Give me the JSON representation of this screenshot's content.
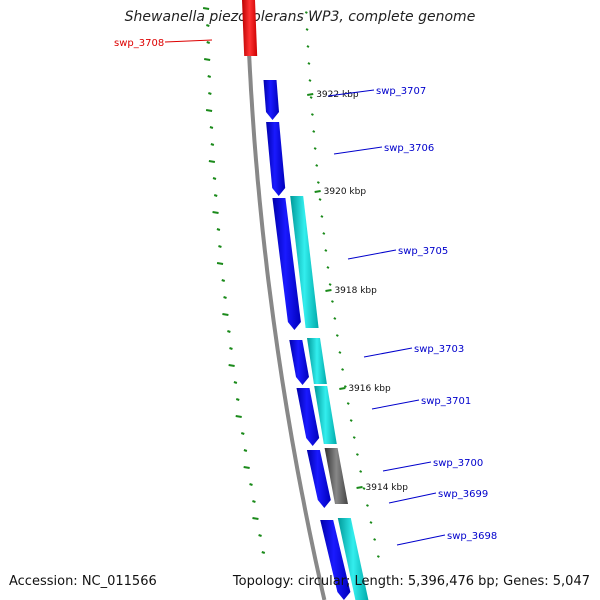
{
  "title": "Shewanella piezotolerans WP3, complete genome",
  "footer": {
    "accession": "Accession: NC_011566",
    "summary": "Topology: circular; Length: 5,396,476 bp; Genes: 5,047"
  },
  "colors": {
    "forward_gene": "#0000ee",
    "reverse_gene": "#00cccc",
    "highlight_gene": "#ee0000",
    "other_gene": "#555555",
    "backbone": "#888888",
    "gc_ticks": "#1a8a1a",
    "label_blue": "#0000cc",
    "label_red": "#dd0000"
  },
  "kbp_ticks": [
    "3922 kbp",
    "3920 kbp",
    "3918 kbp",
    "3916 kbp",
    "3914 kbp"
  ],
  "gene_labels": [
    {
      "label": "swp_3708",
      "color": "red"
    },
    {
      "label": "swp_3707",
      "color": "blue"
    },
    {
      "label": "swp_3706",
      "color": "blue"
    },
    {
      "label": "swp_3705",
      "color": "blue"
    },
    {
      "label": "swp_3703",
      "color": "blue"
    },
    {
      "label": "swp_3701",
      "color": "blue"
    },
    {
      "label": "swp_3700",
      "color": "blue"
    },
    {
      "label": "swp_3699",
      "color": "blue"
    },
    {
      "label": "swp_3698",
      "color": "blue"
    }
  ]
}
